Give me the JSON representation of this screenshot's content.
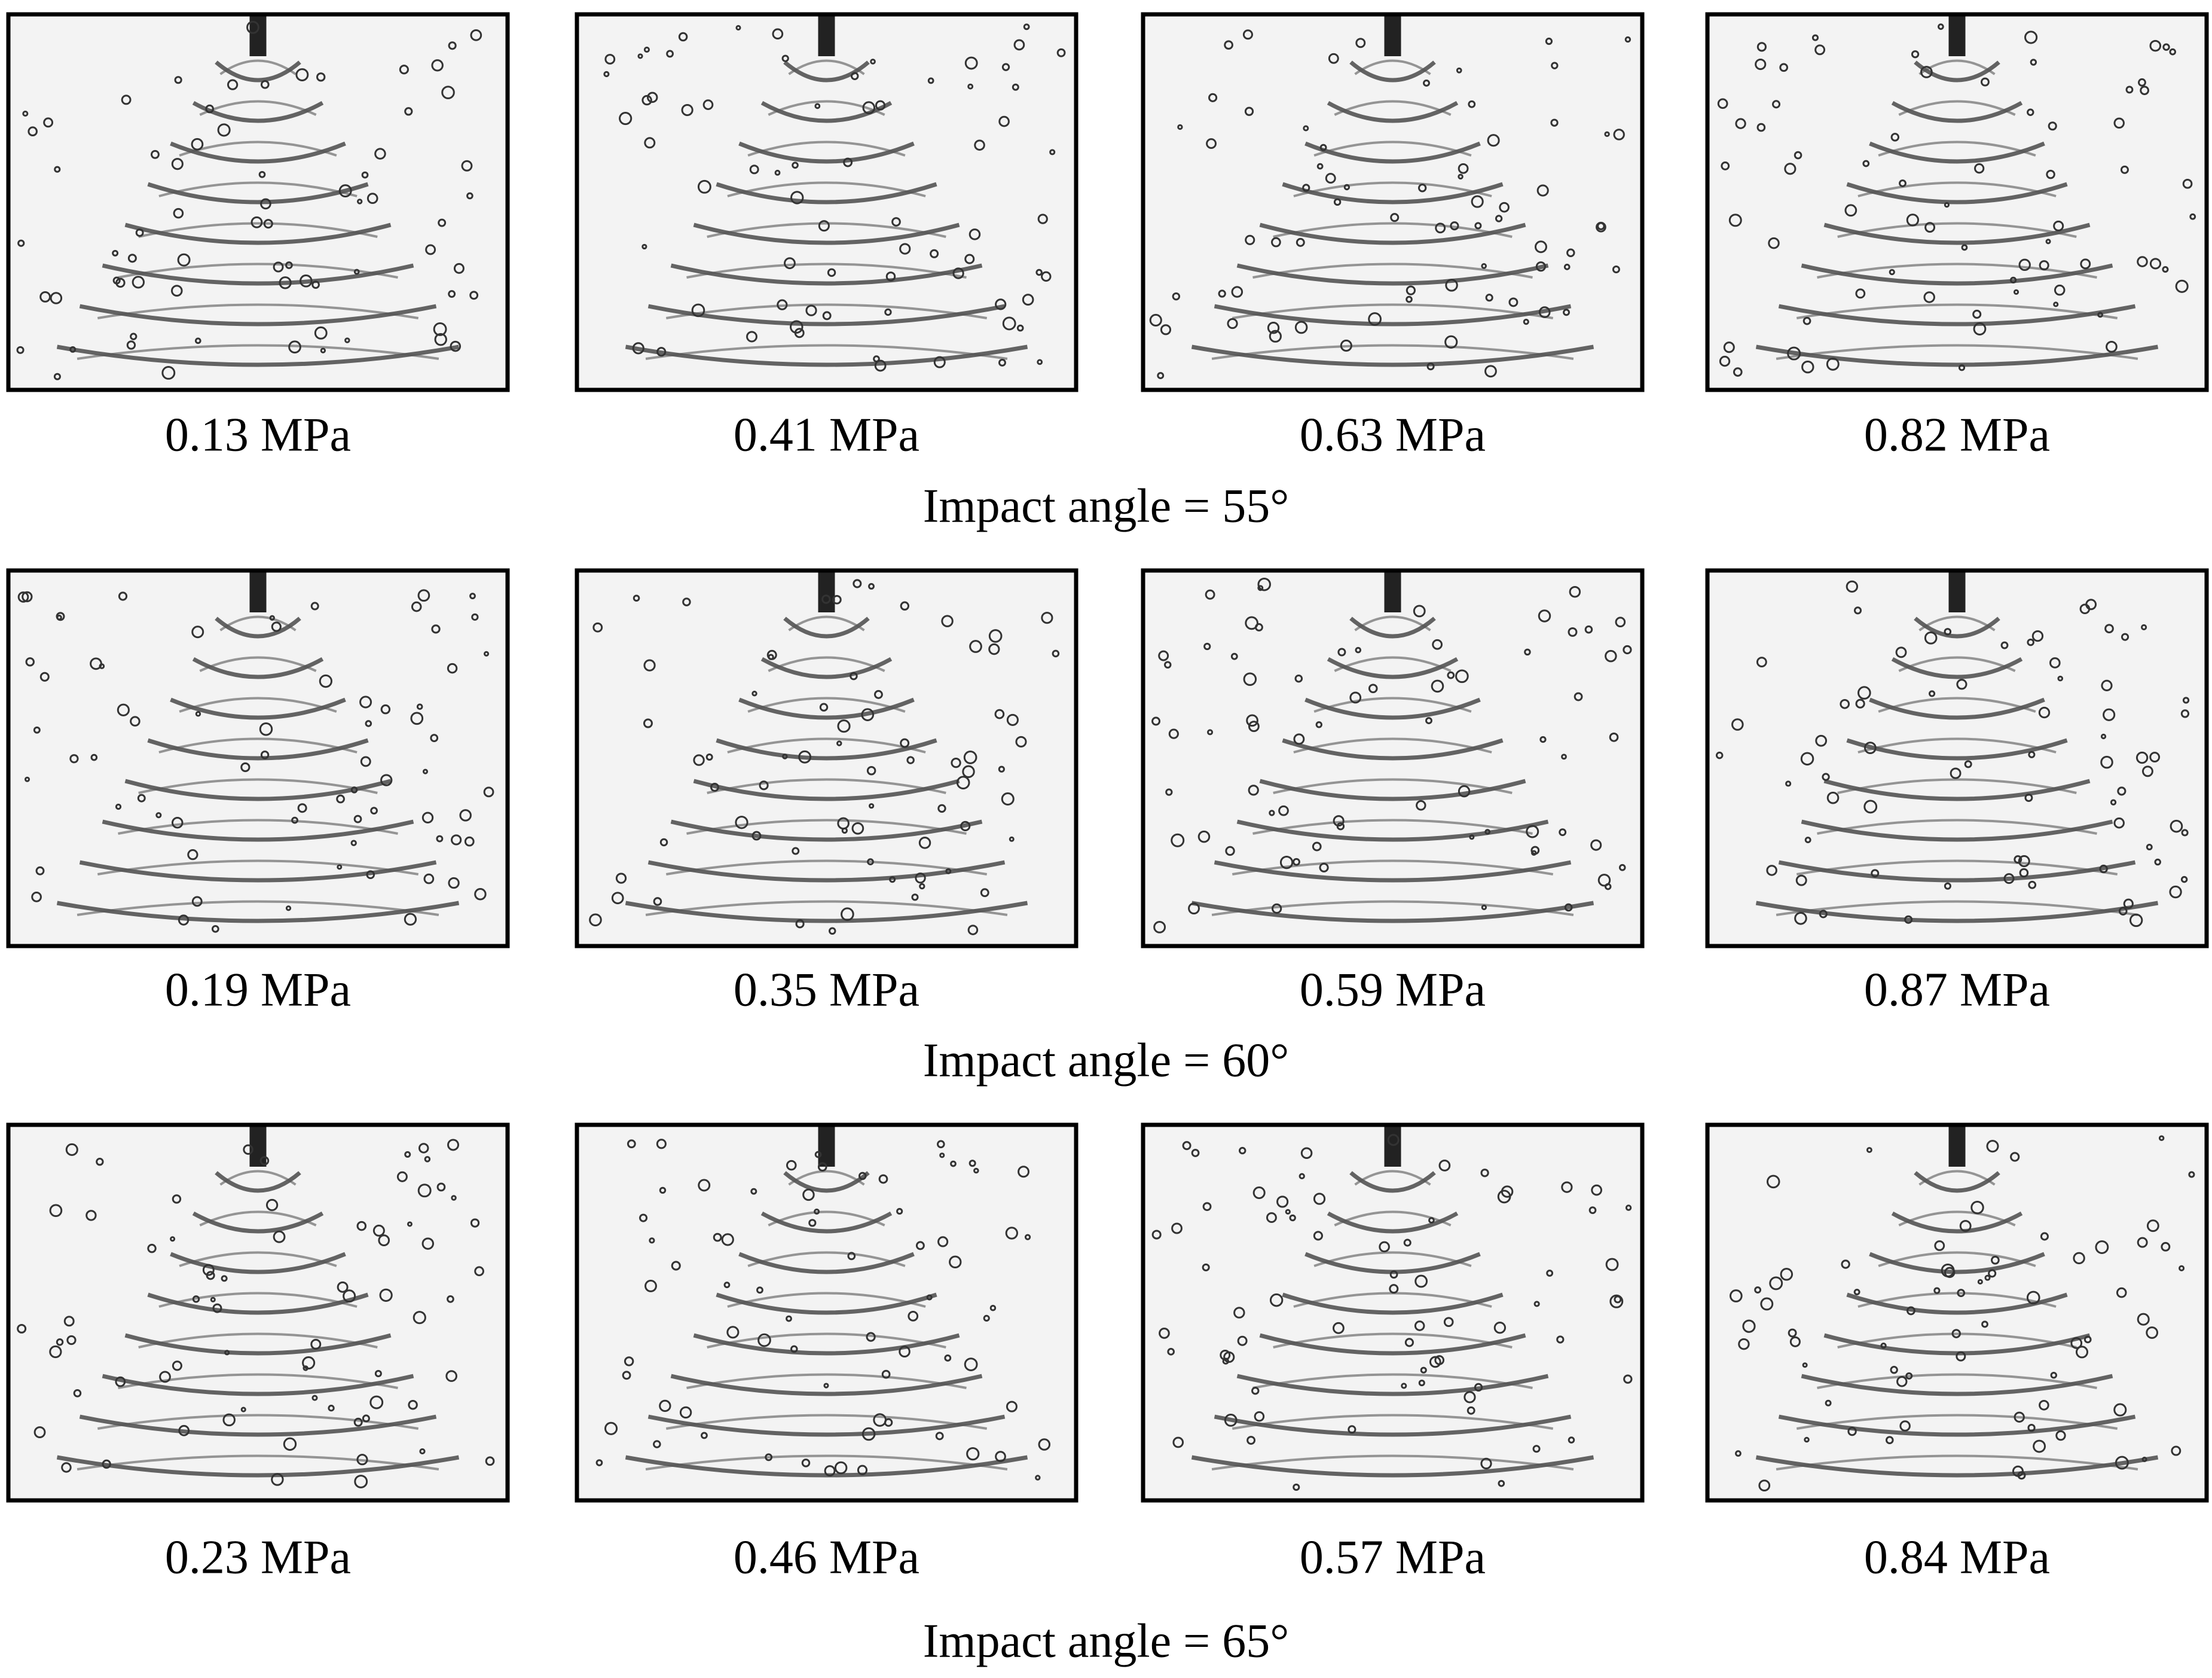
{
  "rows": [
    {
      "caption": "Impact angle = 55°",
      "panels": [
        {
          "label": "0.13 MPa"
        },
        {
          "label": "0.41 MPa"
        },
        {
          "label": "0.63 MPa"
        },
        {
          "label": "0.82 MPa"
        }
      ]
    },
    {
      "caption": "Impact angle = 60°",
      "panels": [
        {
          "label": "0.19 MPa"
        },
        {
          "label": "0.35 MPa"
        },
        {
          "label": "0.59 MPa"
        },
        {
          "label": "0.87 MPa"
        }
      ]
    },
    {
      "caption": "Impact angle = 65°",
      "panels": [
        {
          "label": "0.23 MPa"
        },
        {
          "label": "0.46 MPa"
        },
        {
          "label": "0.57 MPa"
        },
        {
          "label": "0.84 MPa"
        }
      ]
    }
  ]
}
